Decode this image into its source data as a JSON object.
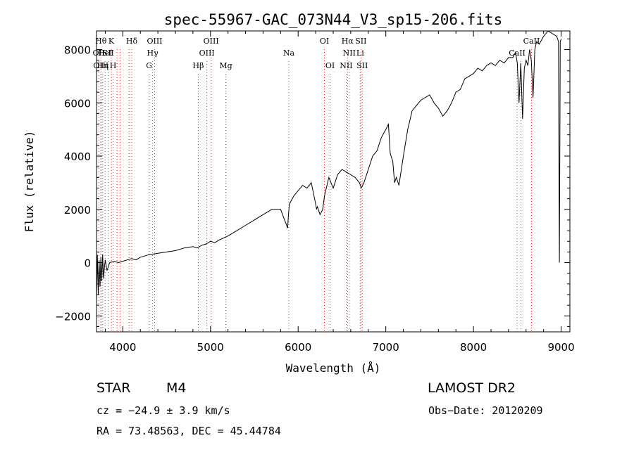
{
  "chart_data": {
    "type": "line",
    "title": "spec-55967-GAC_073N44_V3_sp15-206.fits",
    "xlabel": "Wavelength (Å)",
    "ylabel": "Flux (relative)",
    "xlim": [
      3700,
      9100
    ],
    "ylim": [
      -2600,
      8700
    ],
    "x_ticks": [
      4000,
      5000,
      6000,
      7000,
      8000,
      9000
    ],
    "y_ticks": [
      -2000,
      0,
      2000,
      4000,
      6000,
      8000
    ],
    "grid": false,
    "series": [
      {
        "x": [
          3700,
          3710,
          3720,
          3730,
          3740,
          3750,
          3760,
          3770,
          3780,
          3790,
          3800,
          3820,
          3850,
          3900,
          3950,
          4000,
          4050,
          4100,
          4150,
          4200,
          4300,
          4400,
          4500,
          4600,
          4700,
          4800,
          4850,
          4900,
          4950,
          5000,
          5050,
          5100,
          5200,
          5300,
          5400,
          5500,
          5600,
          5700,
          5800,
          5880,
          5890,
          5900,
          5950,
          6000,
          6050,
          6100,
          6150,
          6200,
          6210,
          6220,
          6250,
          6280,
          6300,
          6350,
          6400,
          6450,
          6500,
          6550,
          6600,
          6650,
          6700,
          6720,
          6750,
          6800,
          6850,
          6900,
          6950,
          7000,
          7030,
          7050,
          7080,
          7100,
          7120,
          7150,
          7200,
          7250,
          7300,
          7400,
          7500,
          7550,
          7600,
          7650,
          7700,
          7750,
          7800,
          7850,
          7900,
          7950,
          8000,
          8050,
          8100,
          8150,
          8200,
          8250,
          8300,
          8350,
          8400,
          8450,
          8480,
          8500,
          8520,
          8540,
          8560,
          8580,
          8600,
          8620,
          8640,
          8660,
          8680,
          8700,
          8720,
          8750,
          8800,
          8850,
          8900,
          8950,
          8960,
          8970,
          8980,
          8990,
          9000
        ],
        "y": [
          -1500,
          300,
          -1200,
          100,
          -900,
          200,
          -700,
          300,
          -600,
          -200,
          100,
          -300,
          0,
          50,
          0,
          50,
          100,
          150,
          100,
          200,
          300,
          350,
          400,
          450,
          550,
          600,
          550,
          650,
          700,
          800,
          750,
          850,
          1000,
          1200,
          1400,
          1600,
          1800,
          2000,
          2000,
          1300,
          1800,
          2200,
          2500,
          2700,
          2900,
          2800,
          3000,
          2200,
          2000,
          2100,
          1800,
          2000,
          2500,
          3200,
          2800,
          3300,
          3500,
          3400,
          3300,
          3200,
          3000,
          2800,
          3000,
          3500,
          4000,
          4200,
          4700,
          5000,
          5200,
          4100,
          3800,
          3000,
          3200,
          2900,
          4000,
          5000,
          5700,
          6100,
          6300,
          6000,
          5800,
          5500,
          5700,
          6000,
          6400,
          6500,
          6900,
          7000,
          7100,
          7300,
          7200,
          7400,
          7500,
          7400,
          7600,
          7500,
          7700,
          7700,
          7900,
          7500,
          6000,
          7500,
          5400,
          7300,
          7600,
          7400,
          8000,
          7600,
          6200,
          8000,
          8300,
          8200,
          8500,
          8700,
          8600,
          8500,
          8400,
          8300,
          0,
          8300,
          8400
        ]
      }
    ],
    "lines": [
      {
        "x": 3727,
        "name": "OII",
        "row": 1
      },
      {
        "x": 3750,
        "name": "Hθ",
        "row": 0
      },
      {
        "x": 3750,
        "name": "OIII",
        "row": 2
      },
      {
        "x": 3771,
        "name": "Hη",
        "row": 2
      },
      {
        "x": 3798,
        "name": "HeI",
        "row": 1
      },
      {
        "x": 3835,
        "name": "SII",
        "row": 1
      },
      {
        "x": 3869,
        "name": "K",
        "row": 0
      },
      {
        "x": 3889,
        "name": "H",
        "row": 2
      },
      {
        "x": 3934,
        "name": "",
        "row": 0
      },
      {
        "x": 3970,
        "name": "",
        "row": 0
      },
      {
        "x": 4072,
        "name": "",
        "row": 0
      },
      {
        "x": 4102,
        "name": "Hδ",
        "row": 0
      },
      {
        "x": 4300,
        "name": "G",
        "row": 2
      },
      {
        "x": 4340,
        "name": "Hγ",
        "row": 1
      },
      {
        "x": 4363,
        "name": "OIII",
        "row": 0
      },
      {
        "x": 4861,
        "name": "Hβ",
        "row": 2
      },
      {
        "x": 4959,
        "name": "OIII",
        "row": 1
      },
      {
        "x": 5007,
        "name": "OIII",
        "row": 0
      },
      {
        "x": 5175,
        "name": "Mg",
        "row": 2
      },
      {
        "x": 5893,
        "name": "Na",
        "row": 1
      },
      {
        "x": 6300,
        "name": "OI",
        "row": 0
      },
      {
        "x": 6364,
        "name": "OI",
        "row": 2
      },
      {
        "x": 6548,
        "name": "NII",
        "row": 2
      },
      {
        "x": 6563,
        "name": "Hα",
        "row": 0
      },
      {
        "x": 6583,
        "name": "NII",
        "row": 1
      },
      {
        "x": 6708,
        "name": "Li",
        "row": 1
      },
      {
        "x": 6716,
        "name": "SII",
        "row": 0
      },
      {
        "x": 6731,
        "name": "SII",
        "row": 2
      },
      {
        "x": 8498,
        "name": "CaII",
        "row": 1
      },
      {
        "x": 8542,
        "name": "",
        "row": 1
      },
      {
        "x": 8662,
        "name": "CaII",
        "row": 0
      }
    ]
  },
  "info": {
    "class_label": "STAR",
    "subclass": "M4",
    "survey": "LAMOST DR2",
    "cz": "cz = −24.9 ± 3.9 km/s",
    "obs_date": "Obs−Date: 20120209",
    "radec": "RA =  73.48563, DEC =  45.44784"
  }
}
